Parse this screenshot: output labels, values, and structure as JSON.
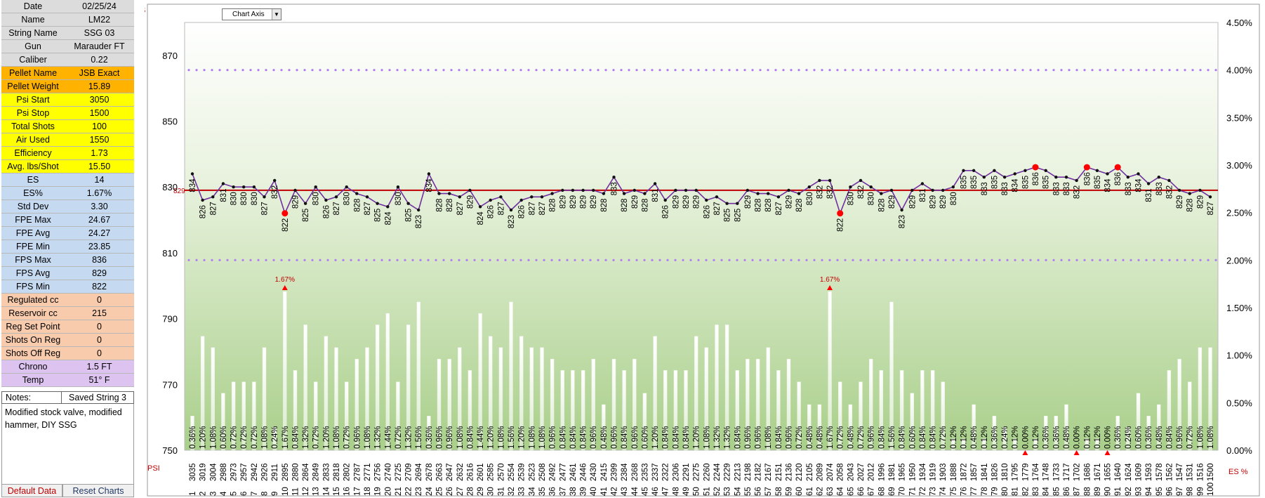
{
  "colors": {
    "gray": "#dcdcdc",
    "orange": "#ffb300",
    "yellow": "#ffff00",
    "blue": "#c5d9f1",
    "salmon": "#f8cbad",
    "purple": "#ddc3f0",
    "fps_line": "#7030a0",
    "avg_line": "#c00000",
    "es_label": "#c00000",
    "limit_dots": "#b27cf0"
  },
  "stats": [
    {
      "label": "Date",
      "value": "02/25/24",
      "group": "gray"
    },
    {
      "label": "Name",
      "value": "LM22",
      "group": "gray"
    },
    {
      "label": "String Name",
      "value": "SSG 03",
      "group": "gray"
    },
    {
      "label": "Gun",
      "value": "Marauder FT",
      "group": "gray"
    },
    {
      "label": "Caliber",
      "value": "0.22",
      "group": "gray"
    },
    {
      "label": "Pellet Name",
      "value": "JSB Exact",
      "group": "orange"
    },
    {
      "label": "Pellet  Weight",
      "value": "15.89",
      "group": "orange"
    },
    {
      "label": "Psi Start",
      "value": "3050",
      "group": "yellow"
    },
    {
      "label": "Psi Stop",
      "value": "1500",
      "group": "yellow"
    },
    {
      "label": "Total Shots",
      "value": "100",
      "group": "yellow"
    },
    {
      "label": "Air Used",
      "value": "1550",
      "group": "yellow"
    },
    {
      "label": "Efficiency",
      "value": "1.73",
      "group": "yellow"
    },
    {
      "label": "Avg. lbs/Shot",
      "value": "15.50",
      "group": "yellow"
    },
    {
      "label": "ES",
      "value": "14",
      "group": "blue"
    },
    {
      "label": "ES%",
      "value": "1.67%",
      "group": "blue"
    },
    {
      "label": "Std Dev",
      "value": "3.30",
      "group": "blue"
    },
    {
      "label": "FPE Max",
      "value": "24.67",
      "group": "blue"
    },
    {
      "label": "FPE Avg",
      "value": "24.27",
      "group": "blue"
    },
    {
      "label": "FPE Min",
      "value": "23.85",
      "group": "blue"
    },
    {
      "label": "FPS Max",
      "value": "836",
      "group": "blue"
    },
    {
      "label": "FPS Avg",
      "value": "829",
      "group": "blue"
    },
    {
      "label": "FPS Min",
      "value": "822",
      "group": "blue"
    },
    {
      "label": "Regulated cc",
      "value": "0",
      "group": "salmon"
    },
    {
      "label": "Reservoir cc",
      "value": "215",
      "group": "salmon"
    },
    {
      "label": "Reg Set Point",
      "value": "0",
      "group": "salmon"
    },
    {
      "label": "Shots On Reg",
      "value": "0",
      "group": "salmon"
    },
    {
      "label": "Shots Off Reg",
      "value": "0",
      "group": "salmon"
    },
    {
      "label": "Chrono",
      "value": "1.5 FT",
      "group": "purple"
    },
    {
      "label": "Temp",
      "value": "51° F",
      "group": "purple"
    }
  ],
  "notes": {
    "label": "Notes:",
    "value": "Saved String 3",
    "text": "Modified stock valve, modified hammer, DIY SSG"
  },
  "footer": {
    "default_data": "Default Data",
    "reset_charts": "Reset Charts"
  },
  "axis_select": {
    "label": "Chart Axis"
  },
  "chart_data": {
    "type": "line",
    "left_axis_title": "FPS",
    "right_axis_title": "ES %",
    "x_axis_title": "PSI",
    "ylim": [
      750,
      880
    ],
    "y_ticks": [
      750,
      770,
      790,
      810,
      830,
      850,
      870
    ],
    "y2lim": [
      0,
      4.5
    ],
    "y2_ticks": [
      "0.00%",
      "0.50%",
      "1.00%",
      "1.50%",
      "2.00%",
      "2.50%",
      "3.00%",
      "3.50%",
      "4.00%",
      "4.50%"
    ],
    "avg_fps": 829,
    "avg_label": "829",
    "upper_limit_pct": 4.0,
    "lower_limit_pct": 2.0,
    "grid": false,
    "fps": [
      834,
      826,
      827,
      831,
      830,
      830,
      830,
      827,
      832,
      822,
      829,
      825,
      830,
      826,
      827,
      830,
      828,
      827,
      825,
      824,
      830,
      825,
      823,
      834,
      828,
      828,
      827,
      829,
      824,
      826,
      827,
      823,
      826,
      827,
      827,
      828,
      829,
      829,
      829,
      829,
      828,
      833,
      828,
      829,
      828,
      831,
      826,
      829,
      829,
      829,
      826,
      827,
      825,
      825,
      829,
      828,
      828,
      827,
      829,
      828,
      830,
      832,
      832,
      822,
      830,
      832,
      830,
      828,
      829,
      823,
      829,
      831,
      829,
      829,
      830,
      835,
      835,
      833,
      835,
      833,
      834,
      835,
      836,
      835,
      833,
      833,
      832,
      836,
      835,
      834,
      836,
      833,
      834,
      831,
      833,
      832,
      829,
      828,
      829,
      827
    ],
    "psi": [
      3035,
      3019,
      3004,
      2988,
      2973,
      2957,
      2942,
      2926,
      2911,
      2895,
      2880,
      2864,
      2849,
      2833,
      2818,
      2802,
      2787,
      2771,
      2756,
      2740,
      2725,
      2709,
      2694,
      2678,
      2663,
      2647,
      2632,
      2616,
      2601,
      2585,
      2570,
      2554,
      2539,
      2523,
      2508,
      2492,
      2477,
      2461,
      2446,
      2430,
      2415,
      2399,
      2384,
      2368,
      2353,
      2337,
      2322,
      2306,
      2291,
      2275,
      2260,
      2244,
      2229,
      2213,
      2198,
      2182,
      2167,
      2151,
      2136,
      2120,
      2105,
      2089,
      2074,
      2058,
      2043,
      2027,
      2012,
      1996,
      1981,
      1965,
      1950,
      1934,
      1919,
      1903,
      1888,
      1872,
      1857,
      1841,
      1826,
      1810,
      1795,
      1779,
      1764,
      1748,
      1733,
      1717,
      1702,
      1686,
      1671,
      1655,
      1640,
      1624,
      1609,
      1593,
      1578,
      1562,
      1547,
      1531,
      1516,
      1500
    ],
    "es_pct": [
      "0.36%",
      "1.20%",
      "1.08%",
      "0.60%",
      "0.72%",
      "0.72%",
      "0.72%",
      "1.08%",
      "0.24%",
      "1.67%",
      "0.84%",
      "1.32%",
      "0.72%",
      "1.20%",
      "1.08%",
      "0.72%",
      "0.96%",
      "1.08%",
      "1.32%",
      "1.44%",
      "0.72%",
      "1.32%",
      "1.56%",
      "0.36%",
      "0.96%",
      "0.96%",
      "1.08%",
      "0.84%",
      "1.44%",
      "1.20%",
      "1.08%",
      "1.56%",
      "1.20%",
      "1.08%",
      "1.08%",
      "0.96%",
      "0.84%",
      "0.84%",
      "0.84%",
      "0.96%",
      "0.48%",
      "0.96%",
      "0.84%",
      "0.96%",
      "0.60%",
      "1.20%",
      "0.84%",
      "0.84%",
      "0.84%",
      "1.20%",
      "1.08%",
      "1.32%",
      "1.32%",
      "0.84%",
      "0.96%",
      "0.96%",
      "1.08%",
      "0.84%",
      "0.96%",
      "0.72%",
      "0.48%",
      "0.48%",
      "1.67%",
      "0.72%",
      "0.48%",
      "0.72%",
      "0.96%",
      "0.84%",
      "1.56%",
      "0.84%",
      "0.60%",
      "0.84%",
      "0.84%",
      "0.72%",
      "0.12%",
      "0.12%",
      "0.48%",
      "0.12%",
      "0.36%",
      "0.24%",
      "0.12%",
      "0.00%",
      "0.12%",
      "0.36%",
      "0.36%",
      "0.48%",
      "0.00%",
      "0.12%",
      "0.12%",
      "0.00%",
      "0.36%",
      "0.24%",
      "0.60%",
      "0.36%",
      "0.48%",
      "0.84%",
      "0.96%",
      "0.72%",
      "1.08%",
      "1.08%"
    ],
    "max_annotation": "1.67%"
  }
}
